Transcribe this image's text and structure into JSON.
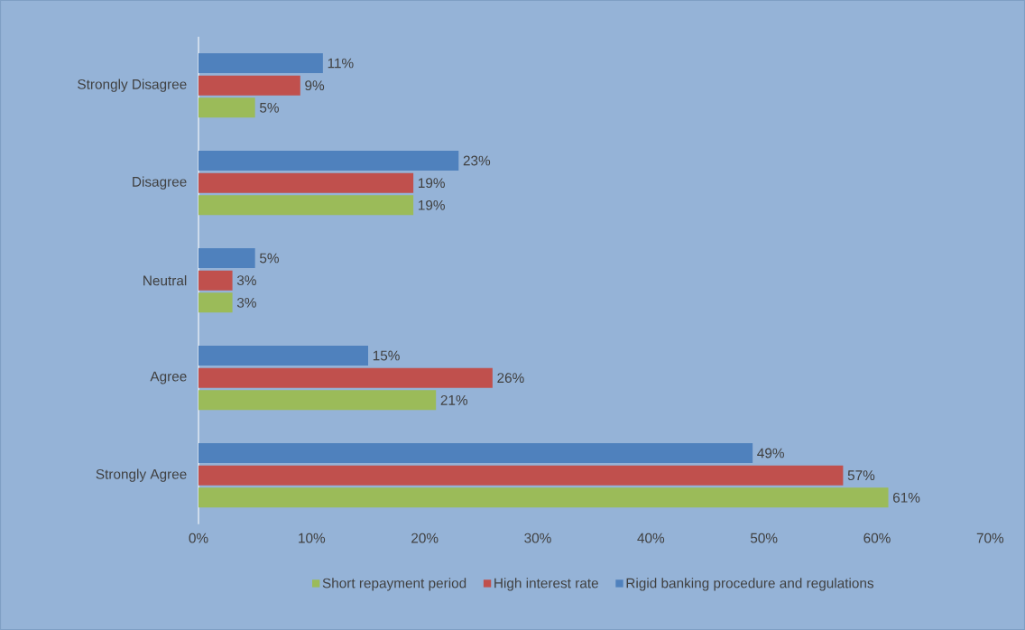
{
  "chart_data": {
    "type": "bar",
    "orientation": "horizontal",
    "categories": [
      "Strongly Disagree",
      "Disagree",
      "Neutral",
      "Agree",
      "Strongly Agree"
    ],
    "series": [
      {
        "name": "Short repayment period",
        "color": "#9bbb59",
        "values": [
          5,
          19,
          3,
          21,
          61
        ],
        "value_labels": [
          "5%",
          "19%",
          "3%",
          "21%",
          "61%"
        ]
      },
      {
        "name": "High interest rate",
        "color": "#c0504d",
        "values": [
          9,
          19,
          3,
          26,
          57
        ],
        "value_labels": [
          "9%",
          "19%",
          "3%",
          "26%",
          "57%"
        ]
      },
      {
        "name": "Rigid banking procedure and regulations",
        "color": "#4f81bd",
        "values": [
          11,
          23,
          5,
          15,
          49
        ],
        "value_labels": [
          "11%",
          "23%",
          "5%",
          "15%",
          "49%"
        ]
      }
    ],
    "xlim": [
      0,
      70
    ],
    "xticks": [
      {
        "value": 0,
        "label": "0%"
      },
      {
        "value": 10,
        "label": "10%"
      },
      {
        "value": 20,
        "label": "20%"
      },
      {
        "value": 30,
        "label": "30%"
      },
      {
        "value": 40,
        "label": "40%"
      },
      {
        "value": 50,
        "label": "50%"
      },
      {
        "value": 60,
        "label": "60%"
      },
      {
        "value": 70,
        "label": "70%"
      }
    ],
    "legend": "bottom"
  }
}
